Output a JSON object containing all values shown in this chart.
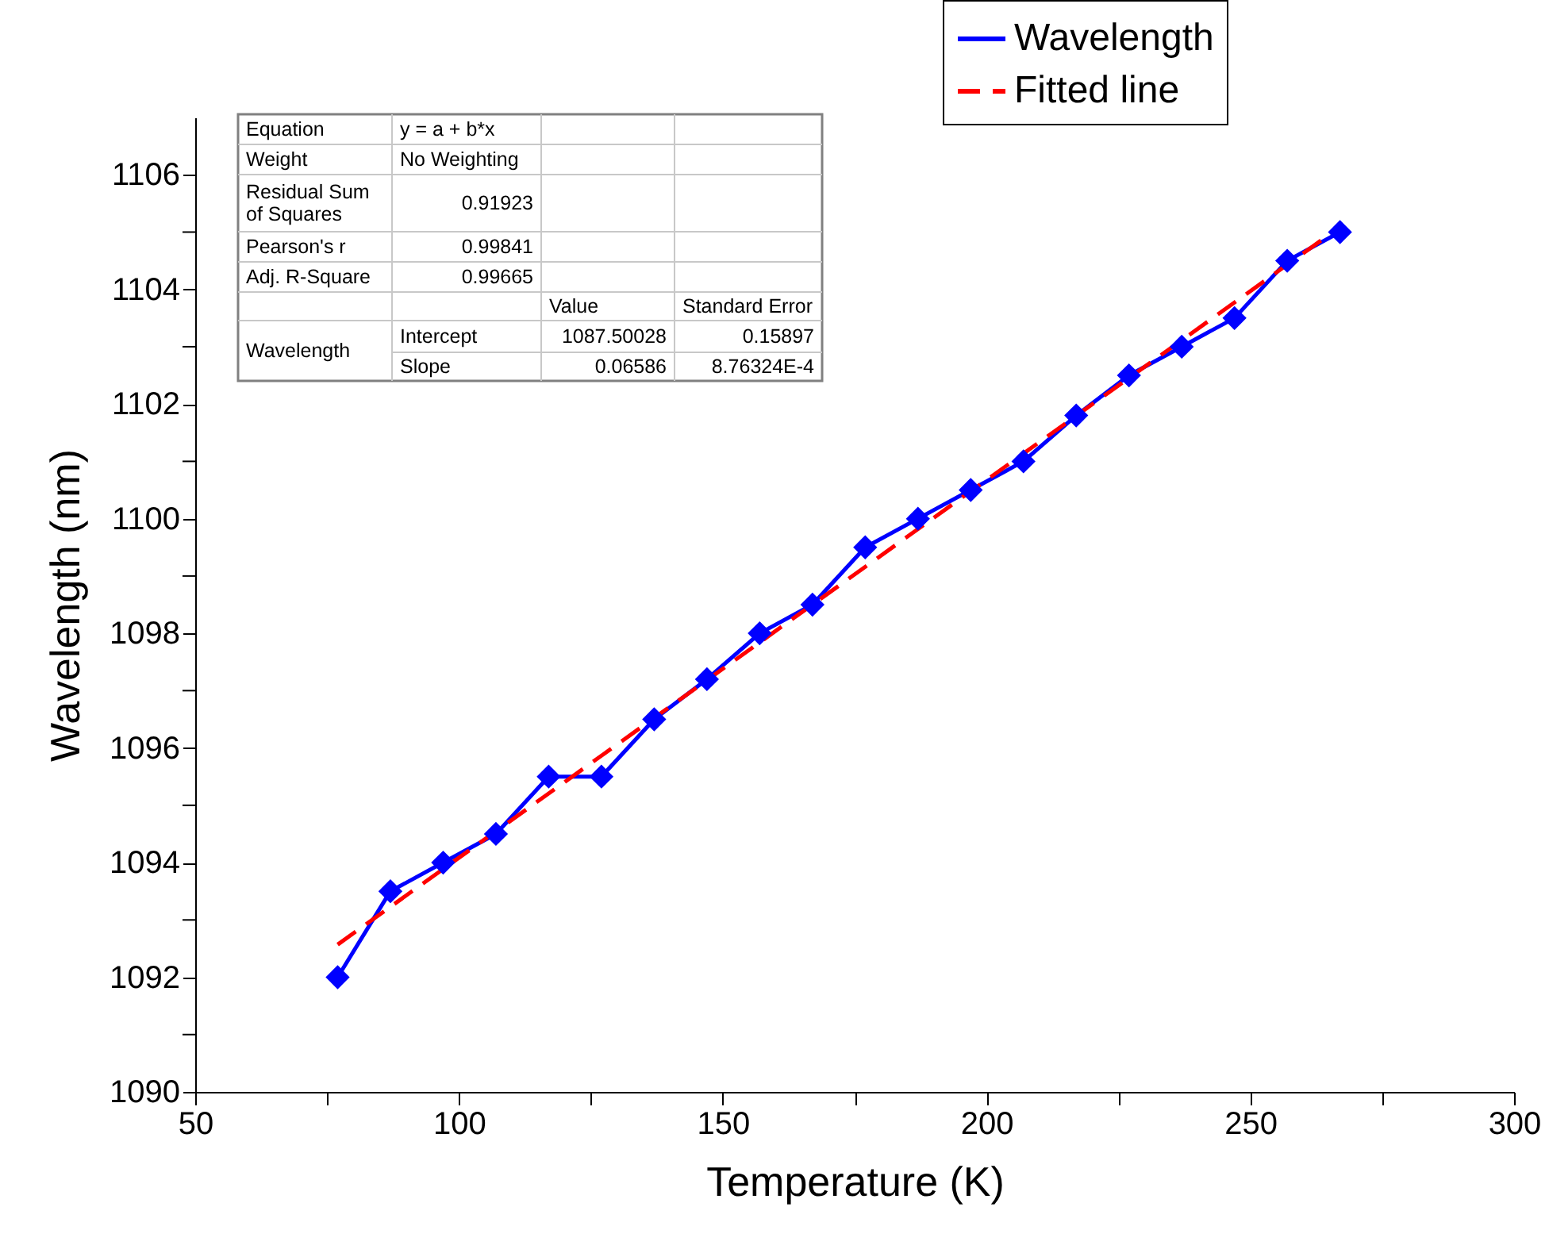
{
  "chart_data": {
    "type": "line",
    "xlabel": "Temperature (K)",
    "ylabel": "Wavelength (nm)",
    "xlim": [
      50,
      300
    ],
    "ylim": [
      1090,
      1107
    ],
    "xticks": [
      50,
      {
        "value": 75,
        "label": null
      },
      100,
      {
        "value": 125,
        "label": null
      },
      150,
      {
        "value": 175,
        "label": null
      },
      200,
      {
        "value": 225,
        "label": null
      },
      250,
      {
        "value": 275,
        "label": null
      },
      300
    ],
    "yticks": [
      1090,
      {
        "value": 1091,
        "label": null
      },
      1092,
      {
        "value": 1093,
        "label": null
      },
      1094,
      {
        "value": 1095,
        "label": null
      },
      1096,
      {
        "value": 1097,
        "label": null
      },
      1098,
      {
        "value": 1099,
        "label": null
      },
      1100,
      {
        "value": 1101,
        "label": null
      },
      1102,
      {
        "value": 1103,
        "label": null
      },
      1104,
      {
        "value": 1105,
        "label": null
      },
      1106
    ],
    "grid": false,
    "legend": "top right",
    "series": [
      {
        "name": "Wavelength",
        "color": "#0000ff",
        "marker": "diamond",
        "line_style": "solid",
        "x": [
          77,
          87,
          97,
          107,
          117,
          127,
          137,
          147,
          157,
          167,
          177,
          187,
          197,
          207,
          217,
          227,
          237,
          247,
          257,
          267
        ],
        "values": [
          1092,
          1093.5,
          1094,
          1094.5,
          1095.5,
          1095.5,
          1096.5,
          1097.2,
          1098,
          1098.5,
          1099.5,
          1100,
          1100.5,
          1101,
          1101.8,
          1102.5,
          1103,
          1103.5,
          1104.5,
          1105
        ]
      },
      {
        "name": "Fitted line",
        "color": "#ff0000",
        "type": "line",
        "line_style": "dashed",
        "x": [
          77,
          267
        ],
        "values": [
          1092.57,
          1105.09
        ]
      }
    ],
    "annotations": [
      "Equation",
      "y = a + b*x",
      "Weight",
      "No Weighting",
      "Residual Sum\nof Squares",
      "0.91923",
      "Pearson's r",
      "0.99841",
      "Adj. R-Square",
      "0.99665",
      "Value",
      "Standard Error",
      "Wavelength",
      "Intercept",
      "1087.50028",
      "0.15897",
      "Slope",
      "0.06586",
      "8.76324E-4"
    ]
  }
}
